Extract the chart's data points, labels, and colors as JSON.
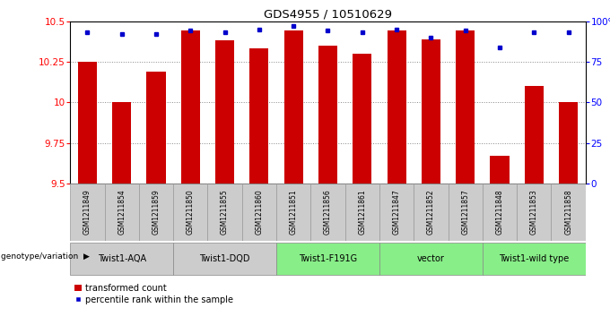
{
  "title": "GDS4955 / 10510629",
  "samples": [
    "GSM1211849",
    "GSM1211854",
    "GSM1211859",
    "GSM1211850",
    "GSM1211855",
    "GSM1211860",
    "GSM1211851",
    "GSM1211856",
    "GSM1211861",
    "GSM1211847",
    "GSM1211852",
    "GSM1211857",
    "GSM1211848",
    "GSM1211853",
    "GSM1211858"
  ],
  "bar_values": [
    10.25,
    10.0,
    10.19,
    10.44,
    10.38,
    10.33,
    10.44,
    10.35,
    10.3,
    10.44,
    10.39,
    10.44,
    9.67,
    10.1,
    10.0
  ],
  "percentile_values": [
    93,
    92,
    92,
    94,
    93,
    95,
    97,
    94,
    93,
    95,
    90,
    94,
    84,
    93,
    93
  ],
  "ylim_left": [
    9.5,
    10.5
  ],
  "ylim_right": [
    0,
    100
  ],
  "yticks_left": [
    9.5,
    9.75,
    10.0,
    10.25,
    10.5
  ],
  "yticks_right": [
    0,
    25,
    50,
    75,
    100
  ],
  "ytick_labels_left": [
    "9.5",
    "9.75",
    "10",
    "10.25",
    "10.5"
  ],
  "ytick_labels_right": [
    "0",
    "25",
    "50",
    "75",
    "100%"
  ],
  "groups": [
    {
      "label": "Twist1-AQA",
      "indices": [
        0,
        1,
        2
      ],
      "color": "#cccccc"
    },
    {
      "label": "Twist1-DQD",
      "indices": [
        3,
        4,
        5
      ],
      "color": "#cccccc"
    },
    {
      "label": "Twist1-F191G",
      "indices": [
        6,
        7,
        8
      ],
      "color": "#88ee88"
    },
    {
      "label": "vector",
      "indices": [
        9,
        10,
        11
      ],
      "color": "#88ee88"
    },
    {
      "label": "Twist1-wild type",
      "indices": [
        12,
        13,
        14
      ],
      "color": "#88ee88"
    }
  ],
  "sample_cell_color": "#cccccc",
  "bar_color": "#cc0000",
  "percentile_color": "#0000cc",
  "base_value": 9.5,
  "legend_bar_label": "transformed count",
  "legend_dot_label": "percentile rank within the sample",
  "group_label": "genotype/variation",
  "bg_color": "#ffffff",
  "grid_color": "#888888"
}
